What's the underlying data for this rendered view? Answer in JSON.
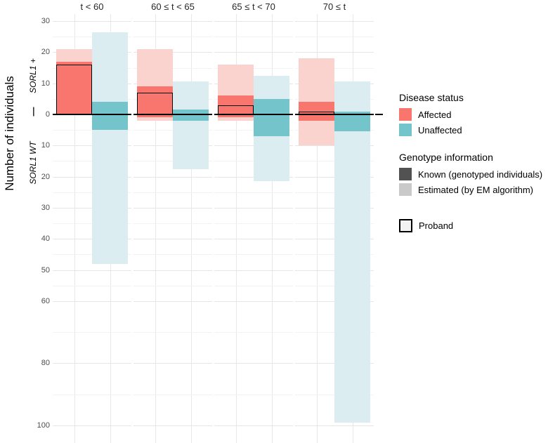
{
  "y_axis": {
    "label": "Number of individuals",
    "strip_top": "SORL1 +",
    "strip_separator": "—",
    "strip_bottom": "SORL1 WT"
  },
  "legend": {
    "disease_status": {
      "title": "Disease status",
      "items": [
        {
          "label": "Affected",
          "color": "#F8766D"
        },
        {
          "label": "Unaffected",
          "color": "#74C4CB"
        }
      ]
    },
    "genotype": {
      "title": "Genotype information",
      "items": [
        {
          "label": "Known (genotyped individuals)",
          "color": "#525252"
        },
        {
          "label": "Estimated (by EM algorithm)",
          "color": "#C9C9C9"
        }
      ]
    },
    "proband": {
      "label": "Proband"
    }
  },
  "chart_data": {
    "type": "bar",
    "ylabel": "Number of individuals",
    "orientation": "diverging (positive = SORL1 +, negative = SORL1 WT)",
    "grid": true,
    "ylim": [
      -105,
      32
    ],
    "y_ticks": [
      {
        "label": "30",
        "value": 30
      },
      {
        "label": "20",
        "value": 20
      },
      {
        "label": "10",
        "value": 10
      },
      {
        "label": "0",
        "value": 0
      },
      {
        "label": "10",
        "value": -10
      },
      {
        "label": "20",
        "value": -20
      },
      {
        "label": "30",
        "value": -30
      },
      {
        "label": "40",
        "value": -40
      },
      {
        "label": "50",
        "value": -50
      },
      {
        "label": "60",
        "value": -60
      },
      {
        "label": "80",
        "value": -80
      },
      {
        "label": "100",
        "value": -100
      }
    ],
    "facets": [
      {
        "label": "t < 60",
        "affected": {
          "estimated_range": [
            0,
            21
          ],
          "known_range": [
            0,
            17
          ],
          "proband_top": 16
        },
        "unaffected": {
          "estimated_range": [
            -48,
            26.5
          ],
          "known_range": [
            -5,
            4
          ]
        }
      },
      {
        "label": "60 ≤ t < 65",
        "affected": {
          "estimated_range": [
            -2,
            21
          ],
          "known_range": [
            -1,
            9
          ],
          "proband_top": 7
        },
        "unaffected": {
          "estimated_range": [
            -17.5,
            10.5
          ],
          "known_range": [
            -2,
            1.5
          ]
        }
      },
      {
        "label": "65 ≤ t < 70",
        "affected": {
          "estimated_range": [
            -2,
            16
          ],
          "known_range": [
            -1,
            6
          ],
          "proband_top": 3
        },
        "unaffected": {
          "estimated_range": [
            -21.5,
            12.5
          ],
          "known_range": [
            -7,
            5
          ]
        }
      },
      {
        "label": "70 ≤ t",
        "affected": {
          "estimated_range": [
            -10,
            18
          ],
          "known_range": [
            -2,
            4
          ],
          "proband_top": 1
        },
        "unaffected": {
          "estimated_range": [
            -99,
            10.5
          ],
          "known_range": [
            -5.5,
            1
          ]
        }
      }
    ],
    "colors": {
      "affected_known": "#F8766D",
      "affected_estimated": "#FBD3CE",
      "unaffected_known": "#74C4CB",
      "unaffected_estimated": "#DBEDF0",
      "proband_outline": "#000000",
      "zero_line": "#000000"
    }
  }
}
